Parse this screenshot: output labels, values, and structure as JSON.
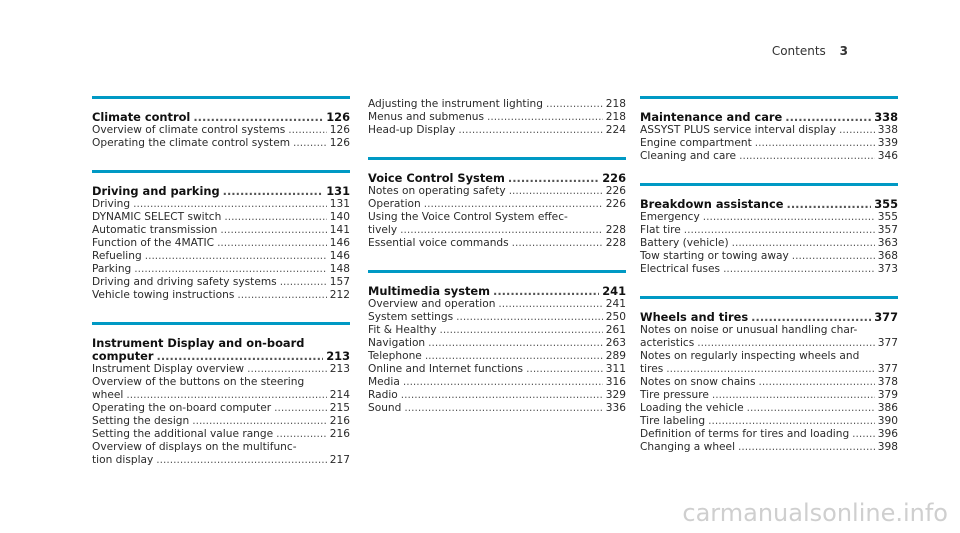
{
  "header": {
    "label": "Contents",
    "page": "3"
  },
  "columns": [
    {
      "sections": [
        {
          "title": "Climate control",
          "title_page": "126",
          "items": [
            {
              "text": "Overview of climate control systems",
              "page": "126"
            },
            {
              "text": "Operating the climate control system",
              "page": "126"
            }
          ]
        },
        {
          "title": "Driving and parking",
          "title_page": "131",
          "items": [
            {
              "text": "Driving",
              "page": "131"
            },
            {
              "text": "DYNAMIC SELECT switch",
              "page": "140"
            },
            {
              "text": "Automatic transmission",
              "page": "141"
            },
            {
              "text": "Function of the 4MATIC",
              "page": "146"
            },
            {
              "text": "Refueling",
              "page": "146"
            },
            {
              "text": "Parking",
              "page": "148"
            },
            {
              "text": "Driving and driving safety systems",
              "page": "157"
            },
            {
              "text": "Vehicle towing instructions",
              "page": "212"
            }
          ]
        },
        {
          "title_line1": "Instrument Display and on-board",
          "title": "computer",
          "title_page": "213",
          "items": [
            {
              "text": "Instrument Display overview",
              "page": "213"
            },
            {
              "text_line1": "Overview of the buttons on the steering",
              "text": "wheel",
              "page": "214"
            },
            {
              "text": "Operating the on-board computer",
              "page": "215"
            },
            {
              "text": "Setting the design",
              "page": "216"
            },
            {
              "text": "Setting the additional value range",
              "page": "216"
            },
            {
              "text_line1": "Overview of displays on the multifunc-",
              "text": "tion display",
              "page": "217"
            }
          ]
        }
      ]
    },
    {
      "sections": [
        {
          "title": null,
          "title_page": null,
          "items": [
            {
              "text": "Adjusting the instrument lighting",
              "page": "218"
            },
            {
              "text": "Menus and submenus",
              "page": "218"
            },
            {
              "text": "Head-up Display",
              "page": "224"
            }
          ]
        },
        {
          "title": "Voice Control System",
          "title_page": "226",
          "items": [
            {
              "text": "Notes on operating safety",
              "page": "226"
            },
            {
              "text": "Operation",
              "page": "226"
            },
            {
              "text_line1": "Using the Voice Control System effec-",
              "text": "tively",
              "page": "228"
            },
            {
              "text": "Essential voice commands",
              "page": "228"
            }
          ]
        },
        {
          "title": "Multimedia system",
          "title_page": "241",
          "items": [
            {
              "text": "Overview and operation",
              "page": "241"
            },
            {
              "text": "System settings",
              "page": "250"
            },
            {
              "text": "Fit & Healthy",
              "page": "261"
            },
            {
              "text": "Navigation",
              "page": "263"
            },
            {
              "text": "Telephone",
              "page": "289"
            },
            {
              "text": "Online and Internet functions",
              "page": "311"
            },
            {
              "text": "Media",
              "page": "316"
            },
            {
              "text": "Radio",
              "page": "329"
            },
            {
              "text": "Sound",
              "page": "336"
            }
          ]
        }
      ]
    },
    {
      "sections": [
        {
          "title": "Maintenance and care",
          "title_page": "338",
          "items": [
            {
              "text": "ASSYST PLUS service interval display",
              "page": "338"
            },
            {
              "text": "Engine compartment",
              "page": "339"
            },
            {
              "text": "Cleaning and care",
              "page": "346"
            }
          ]
        },
        {
          "title": "Breakdown assistance",
          "title_page": "355",
          "items": [
            {
              "text": "Emergency",
              "page": "355"
            },
            {
              "text": "Flat tire",
              "page": "357"
            },
            {
              "text": "Battery (vehicle)",
              "page": "363"
            },
            {
              "text": "Tow starting or towing away",
              "page": "368"
            },
            {
              "text": "Electrical fuses",
              "page": "373"
            }
          ]
        },
        {
          "title": "Wheels and tires",
          "title_page": "377",
          "items": [
            {
              "text_line1": "Notes on noise or unusual handling char-",
              "text": "acteristics",
              "page": "377"
            },
            {
              "text_line1": "Notes on regularly inspecting wheels and",
              "text": "tires",
              "page": "377"
            },
            {
              "text": "Notes on snow chains",
              "page": "378"
            },
            {
              "text": "Tire pressure",
              "page": "379"
            },
            {
              "text": "Loading the vehicle",
              "page": "386"
            },
            {
              "text": "Tire labeling",
              "page": "390"
            },
            {
              "text": "Definition of terms for tires and loading",
              "page": "396"
            },
            {
              "text": "Changing a wheel",
              "page": "398"
            }
          ]
        }
      ]
    }
  ],
  "watermark": "carmanualsonline.info",
  "colors": {
    "accent_rule": "#0099c4",
    "text": "#2a2a2a",
    "watermark": "#cfcfcf"
  }
}
